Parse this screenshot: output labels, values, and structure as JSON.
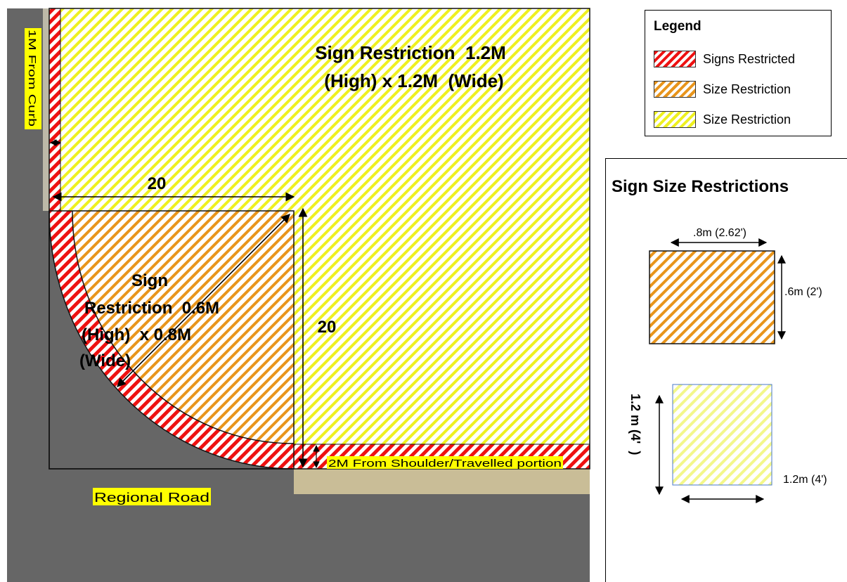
{
  "diagram": {
    "zone_yellow_label_line1": "Sign Restriction  1.2M",
    "zone_yellow_label_line2": "(High) x 1.2M  (Wide)",
    "zone_orange_label_lines": [
      "Sign",
      "Restriction  0.6M",
      "(High)  x 0.8M",
      "(Wide)"
    ],
    "dimension_horizontal": "20",
    "dimension_vertical": "20",
    "curb_offset_label": "1M From Curb",
    "shoulder_offset_label": "2M From Shoulder/Travelled portion",
    "road_label": "Regional Road",
    "colors": {
      "road": "#666666",
      "shoulder": "#c9bd97",
      "red_hatch": "#ee1111",
      "orange_hatch": "#e8951c",
      "yellow_hatch": "#eef020",
      "label_highlight": "#ffff00"
    }
  },
  "legend": {
    "title": "Legend",
    "items": [
      {
        "label": "Signs Restricted",
        "swatch": "red"
      },
      {
        "label": "Size Restriction",
        "swatch": "orange"
      },
      {
        "label": "Size Restriction",
        "swatch": "yellow"
      }
    ]
  },
  "size_restrictions": {
    "title": "Sign Size Restrictions",
    "small_sign": {
      "width_label": ".8m (2.62')",
      "height_label": ".6m (2')"
    },
    "large_sign": {
      "height_label": "1.2 m (4'  )",
      "width_label": "1.2m (4')"
    }
  }
}
